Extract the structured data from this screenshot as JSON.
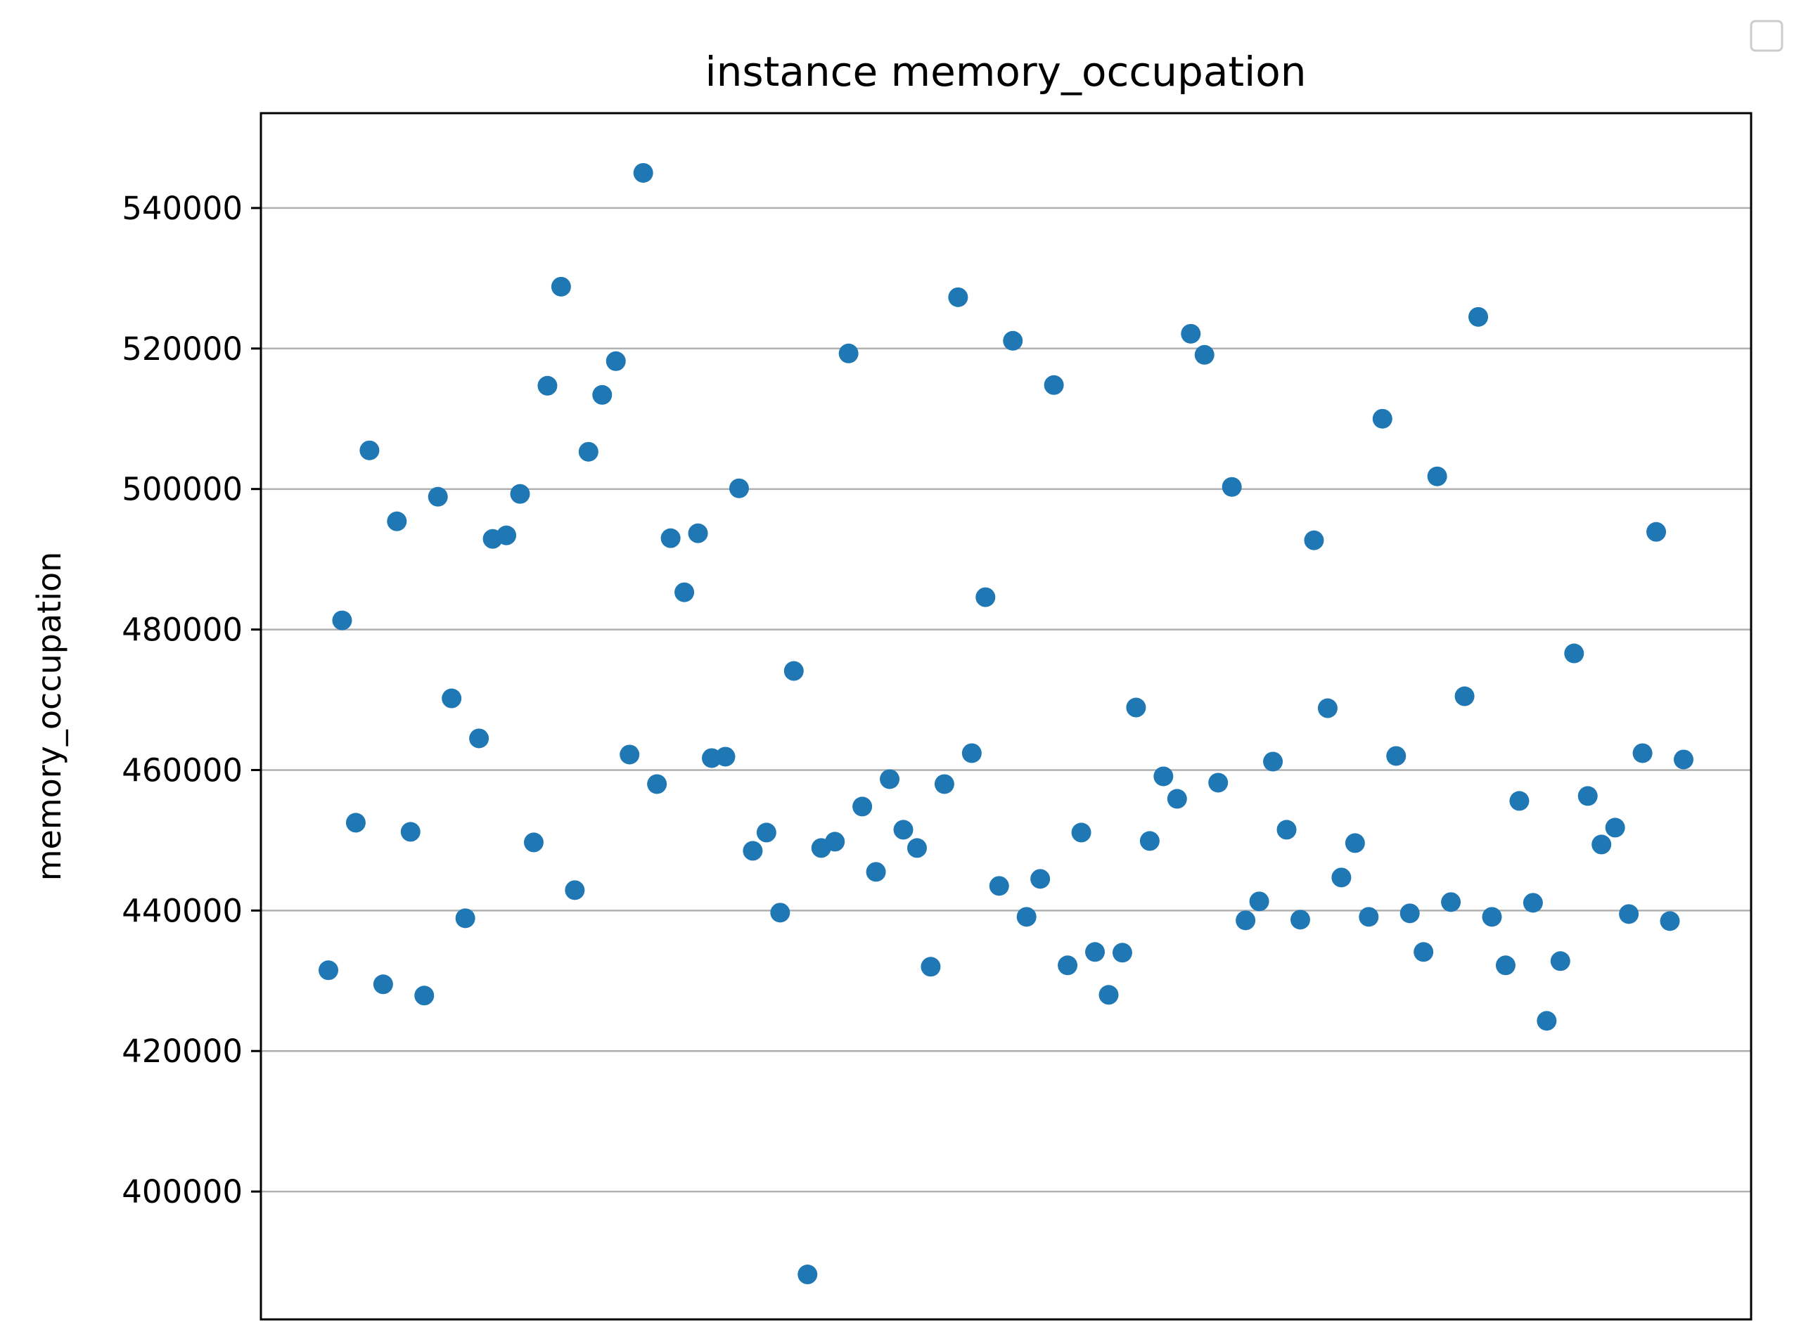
{
  "chart_data": {
    "type": "scatter",
    "title": "instance memory_occupation",
    "xlabel": "",
    "ylabel": "memory_occupation",
    "ylim": [
      381800,
      553500
    ],
    "yticks": [
      400000,
      420000,
      440000,
      460000,
      480000,
      500000,
      520000,
      540000
    ],
    "ytick_labels": [
      "400000",
      "420000",
      "440000",
      "460000",
      "480000",
      "500000",
      "520000",
      "540000"
    ],
    "grid": "y",
    "legend": "top-right (empty)",
    "marker_color": "#1f77b4",
    "series": [
      {
        "name": "memory_occupation",
        "values": [
          431500,
          481300,
          452500,
          505500,
          429500,
          495400,
          451200,
          427900,
          498900,
          470200,
          438900,
          464500,
          492900,
          493400,
          499300,
          449700,
          514700,
          528800,
          442900,
          505300,
          513400,
          518200,
          462200,
          545000,
          458000,
          493000,
          485300,
          493700,
          461700,
          461900,
          500100,
          448500,
          451100,
          439700,
          474100,
          388200,
          448900,
          449800,
          519300,
          454800,
          445500,
          458700,
          451500,
          448900,
          432000,
          458000,
          527300,
          462400,
          484600,
          443500,
          521100,
          439100,
          444500,
          514800,
          432200,
          451100,
          434100,
          428000,
          434000,
          468900,
          449900,
          459100,
          455900,
          522100,
          519100,
          458200,
          500300,
          438600,
          441300,
          461200,
          451500,
          438700,
          492700,
          468800,
          444700,
          449600,
          439100,
          510000,
          462000,
          439600,
          434100,
          501800,
          441200,
          470500,
          524500,
          439100,
          432200,
          455600,
          441100,
          424300,
          432800,
          476600,
          456300,
          449400,
          451800,
          439500,
          462400,
          493900,
          438500,
          461500
        ]
      }
    ]
  }
}
